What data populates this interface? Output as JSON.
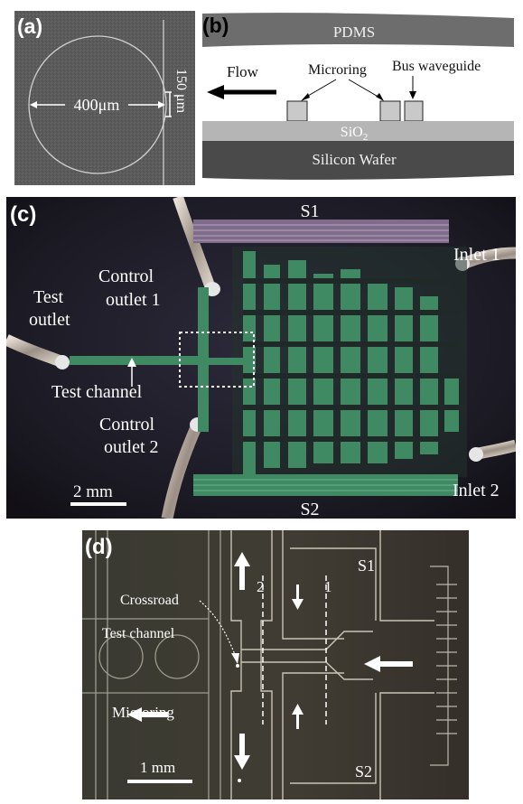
{
  "figure": {
    "panel_a": {
      "label": "(a)",
      "diameter_label": "400μm",
      "width_label": "150 μm"
    },
    "panel_b": {
      "label": "(b)",
      "pdms": "PDMS",
      "flow": "Flow",
      "microring": "Microring",
      "bus_waveguide": "Bus waveguide",
      "sio2": "SiO",
      "sio2_sub": "2",
      "silicon_wafer": "Silicon Wafer"
    },
    "panel_c": {
      "label": "(c)",
      "s1": "S1",
      "s2": "S2",
      "inlet1": "Inlet 1",
      "inlet2": "Inlet 2",
      "test_outlet_l1": "Test",
      "test_outlet_l2": "outlet",
      "control_outlet1_l1": "Control",
      "control_outlet1_l2": "outlet 1",
      "control_outlet2_l1": "Control",
      "control_outlet2_l2": "outlet 2",
      "test_channel": "Test channel",
      "scale": "2 mm"
    },
    "panel_d": {
      "label": "(d)",
      "s1": "S1",
      "s2": "S2",
      "crossroad": "Crossroad",
      "test_channel": "Test channel",
      "microring": "Microring",
      "line2": "2",
      "line1": "1",
      "scale": "1 mm"
    }
  },
  "colors": {
    "sem_bg": "#5e5e5e",
    "pdms": "#6d6d6d",
    "sio2": "#b5b5b5",
    "silicon": "#4a4a4a",
    "device_bg": "#1d1a25",
    "channel_green": "#3f8a62",
    "micro_bg": "#3e3c30"
  }
}
